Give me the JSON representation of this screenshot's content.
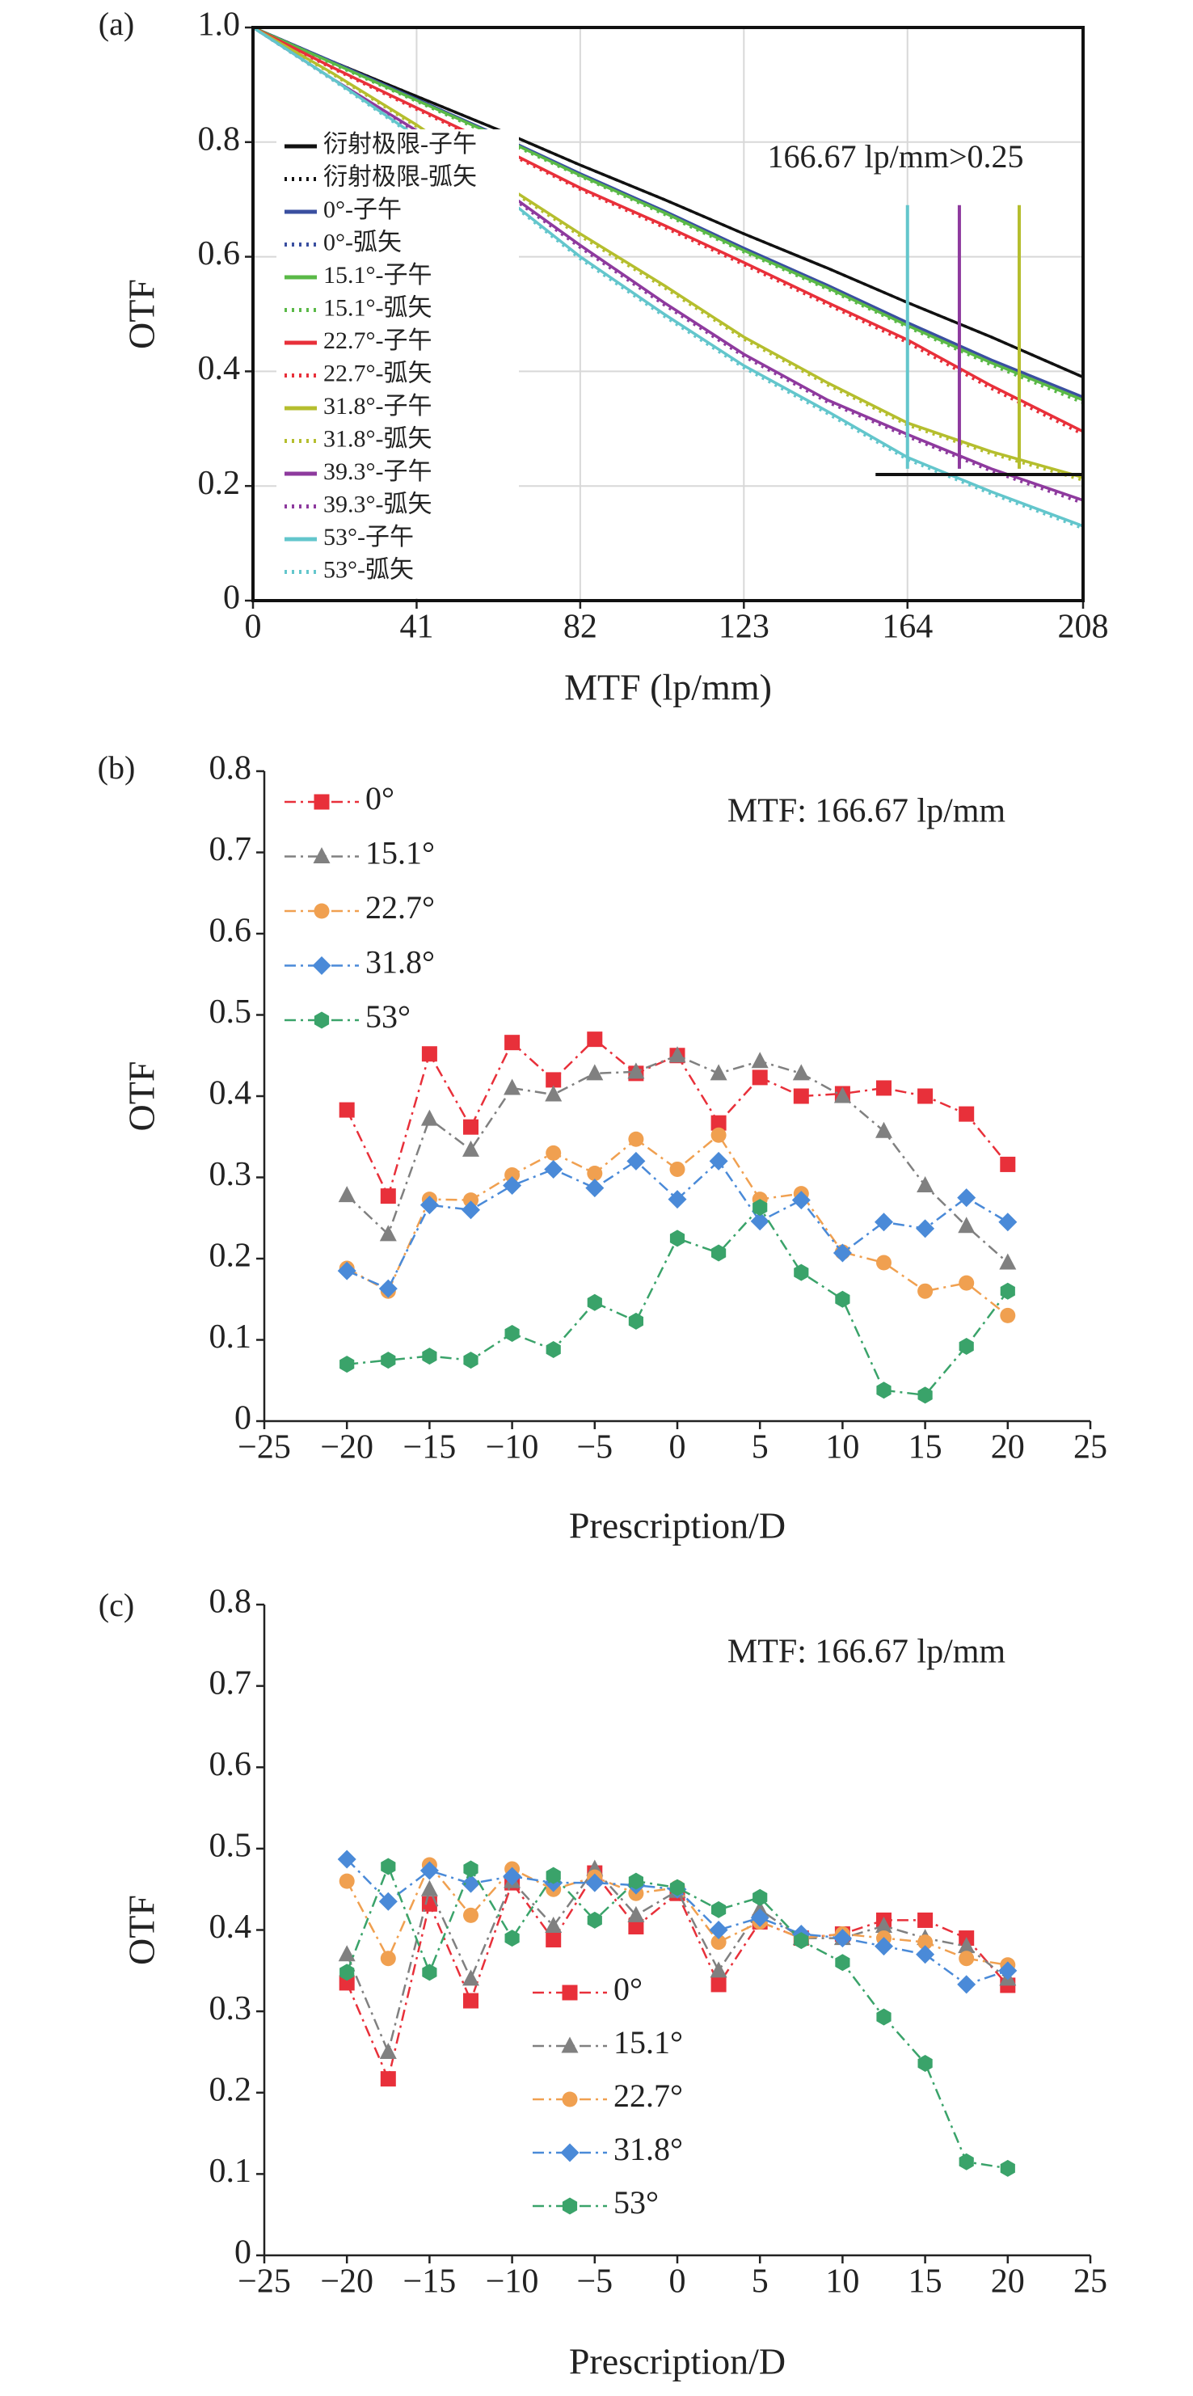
{
  "chart_data": [
    {
      "type": "line",
      "panel": "(a)",
      "xlabel": "MTF (lp/mm)",
      "ylabel": "OTF",
      "annotation": "166.67 lp/mm>0.25",
      "xlim": [
        0,
        208
      ],
      "xticks": [
        0,
        41,
        82,
        123,
        164,
        208
      ],
      "ylim": [
        0,
        1
      ],
      "yticks": [
        0,
        0.2,
        0.4,
        0.6,
        0.8,
        {
          "value": 1,
          "label": "1.0"
        }
      ],
      "grid": true,
      "legend": "upper left",
      "frame": "box",
      "x": [
        0,
        20,
        41,
        62,
        82,
        103,
        123,
        144,
        164,
        185,
        208
      ],
      "series": [
        {
          "name": "衍射极限-子午",
          "color": "#111111",
          "linestyle": "solid",
          "values": [
            1,
            0.94,
            0.88,
            0.82,
            0.76,
            0.7,
            0.64,
            0.58,
            0.52,
            0.46,
            0.39
          ]
        },
        {
          "name": "衍射极限-弧矢",
          "color": "#111111",
          "linestyle": "dotted",
          "values": [
            1,
            0.94,
            0.88,
            0.82,
            0.76,
            0.7,
            0.64,
            0.58,
            0.52,
            0.46,
            0.39
          ]
        },
        {
          "name": "0°-子午",
          "color": "#3a4fa0",
          "linestyle": "solid",
          "values": [
            1,
            0.94,
            0.875,
            0.81,
            0.745,
            0.68,
            0.615,
            0.55,
            0.485,
            0.42,
            0.355
          ]
        },
        {
          "name": "0°-弧矢",
          "color": "#3a4fa0",
          "linestyle": "dotted",
          "values": [
            1,
            0.938,
            0.873,
            0.808,
            0.742,
            0.677,
            0.611,
            0.546,
            0.48,
            0.415,
            0.35
          ]
        },
        {
          "name": "15.1°-子午",
          "color": "#5ab947",
          "linestyle": "solid",
          "values": [
            1,
            0.938,
            0.873,
            0.808,
            0.742,
            0.677,
            0.611,
            0.546,
            0.48,
            0.415,
            0.35
          ]
        },
        {
          "name": "15.1°-弧矢",
          "color": "#5ab947",
          "linestyle": "dotted",
          "values": [
            1,
            0.936,
            0.871,
            0.805,
            0.74,
            0.674,
            0.608,
            0.543,
            0.477,
            0.411,
            0.345
          ]
        },
        {
          "name": "22.7°-子午",
          "color": "#e8303a",
          "linestyle": "solid",
          "values": [
            1,
            0.93,
            0.86,
            0.79,
            0.72,
            0.655,
            0.59,
            0.52,
            0.455,
            0.375,
            0.295
          ]
        },
        {
          "name": "22.7°-弧矢",
          "color": "#e8303a",
          "linestyle": "dotted",
          "values": [
            1,
            0.928,
            0.857,
            0.787,
            0.717,
            0.651,
            0.586,
            0.516,
            0.45,
            0.37,
            0.29
          ]
        },
        {
          "name": "31.8°-子午",
          "color": "#b5be2e",
          "linestyle": "solid",
          "values": [
            1,
            0.92,
            0.83,
            0.73,
            0.64,
            0.55,
            0.46,
            0.38,
            0.31,
            0.26,
            0.215
          ]
        },
        {
          "name": "31.8°-弧矢",
          "color": "#b5be2e",
          "linestyle": "dotted",
          "values": [
            1,
            0.918,
            0.827,
            0.727,
            0.636,
            0.546,
            0.456,
            0.376,
            0.306,
            0.256,
            0.21
          ]
        },
        {
          "name": "39.3°-子午",
          "color": "#8e3a9e",
          "linestyle": "solid",
          "values": [
            1,
            0.91,
            0.82,
            0.72,
            0.62,
            0.52,
            0.43,
            0.35,
            0.29,
            0.23,
            0.175
          ]
        },
        {
          "name": "39.3°-弧矢",
          "color": "#8e3a9e",
          "linestyle": "dotted",
          "values": [
            1,
            0.908,
            0.817,
            0.717,
            0.616,
            0.516,
            0.426,
            0.346,
            0.286,
            0.226,
            0.17
          ]
        },
        {
          "name": "53°-子午",
          "color": "#63c6cc",
          "linestyle": "solid",
          "values": [
            1,
            0.91,
            0.81,
            0.71,
            0.6,
            0.5,
            0.41,
            0.33,
            0.25,
            0.19,
            0.13
          ]
        },
        {
          "name": "53°-弧矢",
          "color": "#63c6cc",
          "linestyle": "dotted",
          "values": [
            1,
            0.908,
            0.807,
            0.707,
            0.596,
            0.496,
            0.406,
            0.326,
            0.246,
            0.186,
            0.126
          ]
        }
      ],
      "vlines": [
        {
          "x": 164,
          "y": [
            0.23,
            0.69
          ],
          "color": "#63c6cc"
        },
        {
          "x": 177,
          "y": [
            0.23,
            0.69
          ],
          "color": "#8e3a9e"
        },
        {
          "x": 192,
          "y": [
            0.23,
            0.69
          ],
          "color": "#b5be2e"
        }
      ],
      "hline": {
        "y": 0.22,
        "x": [
          156,
          208
        ],
        "color": "#111111"
      }
    },
    {
      "type": "line",
      "panel": "(b)",
      "xlabel": "Prescription/D",
      "ylabel": "OTF",
      "annotation": "MTF: 166.67 lp/mm",
      "xlim": [
        -25,
        25
      ],
      "xticks": [
        {
          "value": -25,
          "label": "−25"
        },
        {
          "value": -20,
          "label": "−20"
        },
        {
          "value": -15,
          "label": "−15"
        },
        {
          "value": -10,
          "label": "−10"
        },
        {
          "value": -5,
          "label": "−5"
        },
        0,
        5,
        10,
        15,
        20,
        25
      ],
      "ylim": [
        0,
        0.8
      ],
      "yticks": [
        0,
        0.1,
        0.2,
        0.3,
        0.4,
        0.5,
        0.6,
        0.7,
        0.8
      ],
      "grid": false,
      "legend": "upper left",
      "frame": "axes",
      "x": [
        -20,
        -17.5,
        -15,
        -12.5,
        -10,
        -7.5,
        -5,
        -2.5,
        0,
        2.5,
        5,
        7.5,
        10,
        12.5,
        15,
        17.5,
        20
      ],
      "series": [
        {
          "name": "0°",
          "color": "#e8303a",
          "marker": "square",
          "linestyle": "dashdot",
          "values": [
            0.383,
            0.277,
            0.452,
            0.362,
            0.466,
            0.42,
            0.47,
            0.428,
            0.45,
            0.367,
            0.423,
            0.4,
            0.403,
            0.41,
            0.4,
            0.378,
            0.316
          ]
        },
        {
          "name": "15.1°",
          "color": "#808080",
          "marker": "triangle",
          "linestyle": "dashdot",
          "values": [
            0.278,
            0.23,
            0.372,
            0.334,
            0.41,
            0.402,
            0.428,
            0.43,
            0.45,
            0.428,
            0.443,
            0.428,
            0.4,
            0.357,
            0.29,
            0.24,
            0.195
          ]
        },
        {
          "name": "22.7°",
          "color": "#f0a050",
          "marker": "circle",
          "linestyle": "dashdot",
          "values": [
            0.188,
            0.16,
            0.273,
            0.272,
            0.303,
            0.33,
            0.305,
            0.347,
            0.31,
            0.352,
            0.273,
            0.28,
            0.208,
            0.195,
            0.16,
            0.17,
            0.13
          ]
        },
        {
          "name": "31.8°",
          "color": "#4a8ad8",
          "marker": "diamond",
          "linestyle": "dashdot",
          "values": [
            0.185,
            0.163,
            0.266,
            0.26,
            0.29,
            0.31,
            0.287,
            0.32,
            0.273,
            0.32,
            0.246,
            0.272,
            0.207,
            0.245,
            0.237,
            0.275,
            0.245
          ]
        },
        {
          "name": "53°",
          "color": "#3aa36a",
          "marker": "hexagon",
          "linestyle": "dashdot",
          "values": [
            0.07,
            0.075,
            0.08,
            0.075,
            0.108,
            0.088,
            0.146,
            0.123,
            0.225,
            0.207,
            0.263,
            0.183,
            0.15,
            0.038,
            0.032,
            0.092,
            0.16
          ]
        }
      ]
    },
    {
      "type": "line",
      "panel": "(c)",
      "xlabel": "Prescription/D",
      "ylabel": "OTF",
      "annotation": "MTF: 166.67 lp/mm",
      "xlim": [
        -25,
        25
      ],
      "xticks": [
        {
          "value": -25,
          "label": "−25"
        },
        {
          "value": -20,
          "label": "−20"
        },
        {
          "value": -15,
          "label": "−15"
        },
        {
          "value": -10,
          "label": "−10"
        },
        {
          "value": -5,
          "label": "−5"
        },
        0,
        5,
        10,
        15,
        20,
        25
      ],
      "ylim": [
        0,
        0.8
      ],
      "yticks": [
        0,
        0.1,
        0.2,
        0.3,
        0.4,
        0.5,
        0.6,
        0.7,
        0.8
      ],
      "grid": false,
      "legend": "lower left",
      "frame": "axes",
      "x": [
        -20,
        -17.5,
        -15,
        -12.5,
        -10,
        -7.5,
        -5,
        -2.5,
        0,
        2.5,
        5,
        7.5,
        10,
        12.5,
        15,
        17.5,
        20
      ],
      "series": [
        {
          "name": "0°",
          "color": "#e8303a",
          "marker": "square",
          "linestyle": "dashdot",
          "values": [
            0.335,
            0.217,
            0.432,
            0.313,
            0.458,
            0.388,
            0.47,
            0.404,
            0.445,
            0.333,
            0.41,
            0.39,
            0.395,
            0.412,
            0.412,
            0.39,
            0.332
          ]
        },
        {
          "name": "15.1°",
          "color": "#808080",
          "marker": "triangle",
          "linestyle": "dashdot",
          "values": [
            0.37,
            0.25,
            0.45,
            0.34,
            0.46,
            0.405,
            0.475,
            0.418,
            0.448,
            0.35,
            0.425,
            0.39,
            0.39,
            0.405,
            0.39,
            0.38,
            0.34
          ]
        },
        {
          "name": "22.7°",
          "color": "#f0a050",
          "marker": "circle",
          "linestyle": "dashdot",
          "values": [
            0.46,
            0.365,
            0.48,
            0.418,
            0.475,
            0.45,
            0.465,
            0.445,
            0.452,
            0.385,
            0.41,
            0.39,
            0.395,
            0.39,
            0.385,
            0.365,
            0.357
          ]
        },
        {
          "name": "31.8°",
          "color": "#4a8ad8",
          "marker": "diamond",
          "linestyle": "dashdot",
          "values": [
            0.487,
            0.435,
            0.473,
            0.457,
            0.466,
            0.458,
            0.458,
            0.455,
            0.45,
            0.4,
            0.415,
            0.395,
            0.39,
            0.38,
            0.37,
            0.333,
            0.35
          ]
        },
        {
          "name": "53°",
          "color": "#3aa36a",
          "marker": "hexagon",
          "linestyle": "dashdot",
          "values": [
            0.348,
            0.478,
            0.348,
            0.475,
            0.39,
            0.467,
            0.412,
            0.46,
            0.452,
            0.425,
            0.44,
            0.387,
            0.36,
            0.293,
            0.236,
            0.115,
            0.107
          ]
        }
      ]
    }
  ]
}
